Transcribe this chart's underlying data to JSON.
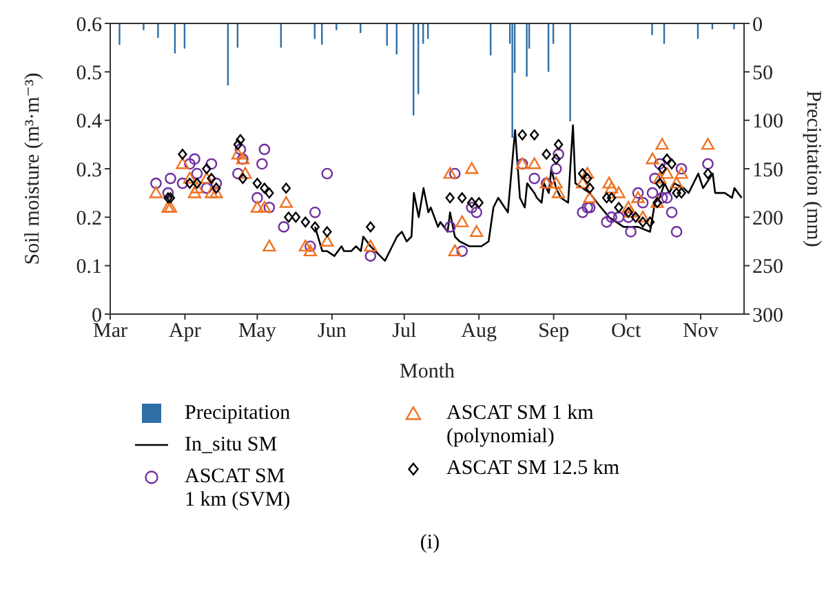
{
  "chart_data": {
    "type": "scatter",
    "xlabel": "Month",
    "ylabel": "Soil moisture (m³·m⁻³)",
    "y2label": "Precipitation (mm)",
    "annotations": [
      "(i)"
    ],
    "xlim": [
      "--03-01",
      "--11-19"
    ],
    "xticks": [
      {
        "value": "--03-01",
        "label": "Mar"
      },
      {
        "value": "--04-01",
        "label": "Apr"
      },
      {
        "value": "--05-01",
        "label": "May"
      },
      {
        "value": "--06-01",
        "label": "Jun"
      },
      {
        "value": "--07-01",
        "label": "Jul"
      },
      {
        "value": "--08-01",
        "label": "Aug"
      },
      {
        "value": "--09-01",
        "label": "Sep"
      },
      {
        "value": "--10-01",
        "label": "Oct"
      },
      {
        "value": "--11-01",
        "label": "Nov"
      }
    ],
    "ylim": [
      0,
      0.6
    ],
    "yticks": [
      0,
      0.1,
      0.2,
      0.3,
      0.4,
      0.5,
      0.6
    ],
    "y2lim": [
      300,
      0
    ],
    "y2ticks": [
      0,
      50,
      100,
      150,
      200,
      250,
      300
    ],
    "grid": false,
    "legend": "bottom",
    "series": [
      {
        "name": "Precipitation",
        "type": "bar",
        "axis": "y2",
        "color": "#2f6ea6",
        "x": [
          "--03-05",
          "--03-15",
          "--03-21",
          "--03-28",
          "--04-01",
          "--04-19",
          "--04-23",
          "--05-11",
          "--05-25",
          "--05-28",
          "--06-03",
          "--06-13",
          "--06-24",
          "--06-28",
          "--07-05",
          "--07-07",
          "--07-09",
          "--07-11",
          "--08-06",
          "--08-14",
          "--08-15",
          "--08-16",
          "--08-21",
          "--08-22",
          "--08-30",
          "--09-01",
          "--09-08",
          "--10-12",
          "--10-17",
          "--10-31",
          "--11-06",
          "--11-15"
        ],
        "values": [
          22,
          7,
          15,
          31,
          26,
          64,
          25,
          25,
          16,
          22,
          7,
          10,
          23,
          32,
          95,
          73,
          21,
          16,
          33,
          21,
          118,
          51,
          55,
          26,
          50,
          21,
          101,
          12,
          21,
          16,
          6,
          6
        ]
      },
      {
        "name": "In_situ SM",
        "type": "line",
        "color": "#000000",
        "marker": "none",
        "x": [
          "--05-25",
          "--05-28",
          "--05-30",
          "--06-02",
          "--06-05",
          "--06-06",
          "--06-09",
          "--06-11",
          "--06-13",
          "--06-14",
          "--06-17",
          "--06-21",
          "--06-23",
          "--06-26",
          "--06-28",
          "--06-30",
          "--07-02",
          "--07-04",
          "--07-05",
          "--07-07",
          "--07-08",
          "--07-09",
          "--07-11",
          "--07-12",
          "--07-15",
          "--07-16",
          "--07-19",
          "--07-20",
          "--07-22",
          "--07-24",
          "--07-28",
          "--08-02",
          "--08-05",
          "--08-07",
          "--08-09",
          "--08-13",
          "--08-16",
          "--08-18",
          "--08-20",
          "--08-21",
          "--08-24",
          "--08-25",
          "--08-27",
          "--08-28",
          "--08-30",
          "--08-31",
          "--09-02",
          "--09-04",
          "--09-07",
          "--09-09",
          "--09-10",
          "--09-13",
          "--09-16",
          "--09-19",
          "--09-24",
          "--09-30",
          "--10-06",
          "--10-11",
          "--10-13",
          "--10-15",
          "--10-17",
          "--10-19",
          "--10-21",
          "--10-25",
          "--10-27",
          "--10-31",
          "--11-02",
          "--11-06",
          "--11-07",
          "--11-11",
          "--11-14",
          "--11-15",
          "--11-18"
        ],
        "values": [
          0.18,
          0.13,
          0.13,
          0.12,
          0.14,
          0.13,
          0.13,
          0.14,
          0.13,
          0.16,
          0.14,
          0.12,
          0.11,
          0.14,
          0.16,
          0.17,
          0.15,
          0.16,
          0.25,
          0.2,
          0.23,
          0.26,
          0.21,
          0.22,
          0.18,
          0.19,
          0.17,
          0.21,
          0.16,
          0.15,
          0.14,
          0.14,
          0.15,
          0.22,
          0.24,
          0.21,
          0.38,
          0.24,
          0.22,
          0.27,
          0.25,
          0.24,
          0.23,
          0.27,
          0.25,
          0.3,
          0.26,
          0.24,
          0.23,
          0.39,
          0.27,
          0.26,
          0.25,
          0.23,
          0.2,
          0.18,
          0.18,
          0.17,
          0.23,
          0.24,
          0.27,
          0.25,
          0.27,
          0.26,
          0.25,
          0.29,
          0.26,
          0.29,
          0.25,
          0.25,
          0.24,
          0.26,
          0.24
        ]
      },
      {
        "name": "ASCAT SM 1 km (SVM)",
        "color": "#7030a0",
        "marker": "circle",
        "x": [
          "--03-20",
          "--03-25",
          "--03-26",
          "--03-31",
          "--04-03",
          "--04-05",
          "--04-06",
          "--04-10",
          "--04-12",
          "--04-14",
          "--04-23",
          "--04-24",
          "--04-25",
          "--05-01",
          "--05-03",
          "--05-04",
          "--05-06",
          "--05-12",
          "--05-23",
          "--05-25",
          "--05-30",
          "--06-17",
          "--07-20",
          "--07-22",
          "--07-25",
          "--07-29",
          "--07-31",
          "--08-19",
          "--08-24",
          "--08-29",
          "--09-02",
          "--09-03",
          "--09-13",
          "--09-15",
          "--09-16",
          "--09-23",
          "--09-25",
          "--09-28",
          "--10-02",
          "--10-03",
          "--10-06",
          "--10-08",
          "--10-12",
          "--10-13",
          "--10-15",
          "--10-16",
          "--10-18",
          "--10-20",
          "--10-22",
          "--10-24",
          "--11-04"
        ],
        "values": [
          0.27,
          0.25,
          0.28,
          0.27,
          0.31,
          0.32,
          0.29,
          0.26,
          0.31,
          0.27,
          0.29,
          0.34,
          0.32,
          0.24,
          0.31,
          0.34,
          0.22,
          0.18,
          0.14,
          0.21,
          0.29,
          0.12,
          0.18,
          0.29,
          0.13,
          0.22,
          0.21,
          0.31,
          0.28,
          0.27,
          0.3,
          0.33,
          0.21,
          0.22,
          0.22,
          0.19,
          0.2,
          0.2,
          0.2,
          0.17,
          0.25,
          0.23,
          0.25,
          0.28,
          0.31,
          0.24,
          0.24,
          0.21,
          0.17,
          0.3,
          0.31
        ]
      },
      {
        "name": "ASCAT SM 1 km (polynomial)",
        "color": "#f07222",
        "marker": "triangle",
        "x": [
          "--03-20",
          "--03-25",
          "--03-26",
          "--03-31",
          "--04-03",
          "--04-05",
          "--04-06",
          "--04-10",
          "--04-12",
          "--04-14",
          "--04-23",
          "--04-25",
          "--04-26",
          "--05-01",
          "--05-04",
          "--05-06",
          "--05-13",
          "--05-21",
          "--05-23",
          "--05-30",
          "--06-17",
          "--07-20",
          "--07-22",
          "--07-25",
          "--07-29",
          "--07-31",
          "--08-19",
          "--08-24",
          "--08-29",
          "--09-02",
          "--09-03",
          "--09-13",
          "--09-15",
          "--09-16",
          "--09-24",
          "--09-25",
          "--09-28",
          "--10-02",
          "--10-03",
          "--10-06",
          "--10-08",
          "--10-12",
          "--10-14",
          "--10-15",
          "--10-16",
          "--10-18",
          "--10-22",
          "--10-24",
          "--11-04"
        ],
        "values": [
          0.25,
          0.22,
          0.22,
          0.31,
          0.28,
          0.25,
          0.26,
          0.28,
          0.25,
          0.25,
          0.33,
          0.32,
          0.29,
          0.22,
          0.22,
          0.14,
          0.23,
          0.14,
          0.13,
          0.15,
          0.14,
          0.29,
          0.13,
          0.19,
          0.3,
          0.17,
          0.31,
          0.31,
          0.27,
          0.27,
          0.25,
          0.27,
          0.29,
          0.24,
          0.27,
          0.26,
          0.25,
          0.22,
          0.21,
          0.24,
          0.2,
          0.32,
          0.23,
          0.28,
          0.35,
          0.29,
          0.27,
          0.29,
          0.35
        ]
      },
      {
        "name": "ASCAT SM 12.5 km",
        "color": "#000000",
        "marker": "diamond",
        "x": [
          "--03-25",
          "--03-26",
          "--03-31",
          "--04-03",
          "--04-06",
          "--04-10",
          "--04-12",
          "--04-14",
          "--04-23",
          "--04-24",
          "--04-25",
          "--05-01",
          "--05-04",
          "--05-06",
          "--05-13",
          "--05-14",
          "--05-17",
          "--05-21",
          "--05-25",
          "--05-30",
          "--06-17",
          "--07-20",
          "--07-25",
          "--07-29",
          "--08-01",
          "--08-19",
          "--08-24",
          "--08-29",
          "--09-02",
          "--09-03",
          "--09-13",
          "--09-15",
          "--09-16",
          "--09-23",
          "--09-25",
          "--09-28",
          "--10-02",
          "--10-05",
          "--10-08",
          "--10-11",
          "--10-14",
          "--10-15",
          "--10-16",
          "--10-18",
          "--10-20",
          "--10-22",
          "--10-24",
          "--11-04"
        ],
        "values": [
          0.24,
          0.24,
          0.33,
          0.27,
          0.27,
          0.3,
          0.28,
          0.26,
          0.35,
          0.36,
          0.28,
          0.27,
          0.26,
          0.25,
          0.26,
          0.2,
          0.2,
          0.19,
          0.18,
          0.17,
          0.18,
          0.24,
          0.24,
          0.23,
          0.23,
          0.37,
          0.37,
          0.33,
          0.32,
          0.35,
          0.29,
          0.28,
          0.26,
          0.24,
          0.24,
          0.22,
          0.21,
          0.2,
          0.19,
          0.19,
          0.23,
          0.27,
          0.3,
          0.32,
          0.31,
          0.25,
          0.25,
          0.29
        ]
      }
    ]
  }
}
